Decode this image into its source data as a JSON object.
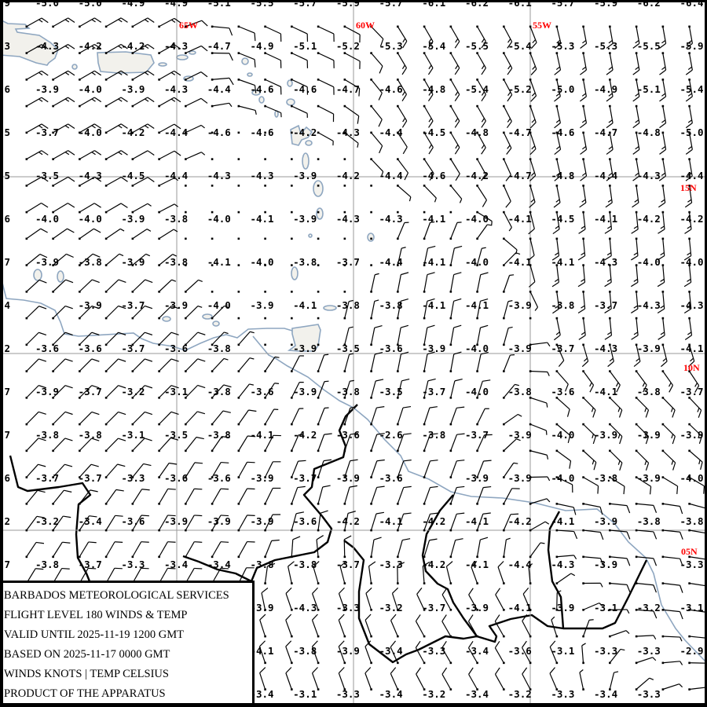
{
  "legend": {
    "agency": "BARBADOS METEOROLOGICAL SERVICES",
    "product": "FLIGHT LEVEL 180 WINDS & TEMP",
    "valid": "VALID UNTIL 2025-11-19 1200 GMT",
    "based": "BASED ON 2025-11-17 0000 GMT",
    "units": "WINDS KNOTS | TEMP CELSIUS",
    "credit": "PRODUCT OF THE APPARATUS"
  },
  "geo_labels": {
    "lon_65": "65W",
    "lon_60": "60W",
    "lon_55": "55W",
    "lat_15": "15N",
    "lat_10": "10N",
    "lat_05": "05N"
  },
  "extent": {
    "lon": [
      -70,
      -50
    ],
    "lat": [
      0,
      20
    ],
    "graticule_step_deg": 5
  },
  "colors": {
    "coastline": "#8ea6c0",
    "land_fill": "#f2f1ec",
    "borders": "#000000",
    "graticule": "#9a9a9a",
    "geo_labels": "#ff0000",
    "barbs": "#000000"
  },
  "temperatures": {
    "edge_fragments": [
      "9",
      "3",
      "6",
      "5",
      "5",
      "6",
      "7",
      "4",
      "2",
      "7",
      "7",
      "6",
      "2",
      "7",
      null,
      null,
      null
    ],
    "rows": [
      [
        -5.0,
        -5.0,
        -4.9,
        -4.9,
        -5.1,
        -5.5,
        -5.7,
        -5.9,
        -5.7,
        -6.1,
        -6.2,
        -6.1,
        -5.7,
        -5.9,
        -6.2,
        -6.4
      ],
      [
        -4.3,
        -4.2,
        -4.2,
        -4.3,
        -4.7,
        -4.9,
        -5.1,
        -5.2,
        -5.3,
        -5.4,
        -5.5,
        -5.4,
        -5.3,
        -5.3,
        -5.5,
        -5.9
      ],
      [
        -3.9,
        -4.0,
        -3.9,
        -4.3,
        -4.4,
        -4.6,
        -4.6,
        -4.7,
        -4.6,
        -4.8,
        -5.4,
        -5.2,
        -5.0,
        -4.9,
        -5.1,
        -5.4
      ],
      [
        -3.7,
        -4.0,
        -4.2,
        -4.4,
        -4.6,
        -4.6,
        -4.2,
        -4.3,
        -4.4,
        -4.5,
        -4.8,
        -4.7,
        -4.6,
        -4.7,
        -4.8,
        -5.0
      ],
      [
        -3.5,
        -4.3,
        -4.5,
        -4.4,
        -4.3,
        -4.3,
        -3.9,
        -4.2,
        -4.4,
        -4.6,
        -4.2,
        -4.7,
        -4.8,
        -4.4,
        -4.3,
        -4.4
      ],
      [
        -4.0,
        -4.0,
        -3.9,
        -3.8,
        -4.0,
        -4.1,
        -3.9,
        -4.3,
        -4.3,
        -4.1,
        -4.0,
        -4.1,
        -4.5,
        -4.1,
        -4.2,
        -4.2
      ],
      [
        -3.9,
        -3.8,
        -3.9,
        -3.8,
        -4.1,
        -4.0,
        -3.8,
        -3.7,
        -4.4,
        -4.1,
        -4.0,
        -4.1,
        -4.1,
        -4.3,
        -4.0,
        -4.0
      ],
      [
        null,
        -3.9,
        -3.7,
        -3.9,
        -4.0,
        -3.9,
        -4.1,
        -3.8,
        -3.8,
        -4.1,
        -4.1,
        -3.9,
        -3.8,
        -3.7,
        -4.3,
        -4.3
      ],
      [
        -3.6,
        -3.6,
        -3.7,
        -3.6,
        -3.8,
        null,
        -3.9,
        -3.5,
        -3.6,
        -3.9,
        -4.0,
        -3.9,
        -3.7,
        -4.3,
        -3.9,
        -4.1
      ],
      [
        -3.9,
        -3.7,
        -3.2,
        -3.1,
        -3.8,
        -3.6,
        -3.9,
        -3.8,
        -3.5,
        -3.7,
        -4.0,
        -3.8,
        -3.6,
        -4.1,
        -3.8,
        -3.7
      ],
      [
        -3.8,
        -3.8,
        -3.1,
        -3.5,
        -3.8,
        -4.1,
        -4.2,
        -3.6,
        -2.6,
        -3.8,
        -3.7,
        -3.9,
        -4.0,
        -3.9,
        -3.9,
        -3.9
      ],
      [
        -3.7,
        -3.7,
        -3.3,
        -3.6,
        -3.6,
        -3.9,
        -3.7,
        -3.9,
        -3.6,
        null,
        -3.9,
        -3.9,
        -4.0,
        -3.8,
        -3.9,
        -4.0
      ],
      [
        -3.2,
        -3.4,
        -3.6,
        -3.9,
        -3.9,
        -3.9,
        -3.6,
        -4.2,
        -4.1,
        -4.2,
        -4.1,
        -4.2,
        -4.1,
        -3.9,
        -3.8,
        -3.8
      ],
      [
        -3.8,
        -3.7,
        -3.3,
        -3.4,
        -3.4,
        -3.8,
        -3.8,
        -3.7,
        -3.3,
        -4.2,
        -4.1,
        -4.4,
        -4.3,
        -3.9,
        null,
        -3.3
      ],
      [
        null,
        null,
        null,
        null,
        null,
        -3.9,
        -4.3,
        -3.3,
        -3.2,
        -3.7,
        -3.9,
        -4.1,
        -3.9,
        -3.1,
        -3.2,
        -3.1
      ],
      [
        null,
        null,
        null,
        null,
        null,
        -4.1,
        -3.8,
        -3.9,
        -3.4,
        -3.3,
        -3.4,
        -3.6,
        -3.1,
        -3.3,
        -3.3,
        -2.9
      ],
      [
        null,
        null,
        null,
        null,
        null,
        -3.4,
        -3.1,
        -3.3,
        -3.4,
        -3.2,
        -3.4,
        -3.2,
        -3.3,
        -3.4,
        -3.3,
        null
      ]
    ]
  },
  "wind": {
    "units": "knots",
    "station_spacing_deg": 0.75,
    "field_estimate": [
      {
        "lon": -66.7,
        "lat": 17.8,
        "dir": 60,
        "speed": 15
      },
      {
        "lon": -66.7,
        "lat": 8.9,
        "dir": 45,
        "speed": 10
      },
      {
        "lon": -62.5,
        "lat": 14.8,
        "dir": 0,
        "speed": 0
      },
      {
        "lon": -61.6,
        "lat": 12.8,
        "dir": 0,
        "speed": 0
      },
      {
        "lon": -61.6,
        "lat": 18.7,
        "dir": 115,
        "speed": 10
      },
      {
        "lon": -57.6,
        "lat": 18.2,
        "dir": 150,
        "speed": 15
      },
      {
        "lon": -52.2,
        "lat": 17.8,
        "dir": 170,
        "speed": 20
      },
      {
        "lon": -52.2,
        "lat": 12.2,
        "dir": 175,
        "speed": 20
      },
      {
        "lon": -52.2,
        "lat": 7.6,
        "dir": 135,
        "speed": 15
      },
      {
        "lon": -52.2,
        "lat": 5.3,
        "dir": 95,
        "speed": 10
      },
      {
        "lon": -57.6,
        "lat": 10.7,
        "dir": 10,
        "speed": 10
      },
      {
        "lon": -57.8,
        "lat": 5.6,
        "dir": 20,
        "speed": 10
      },
      {
        "lon": -56.7,
        "lat": 1.8,
        "dir": 330,
        "speed": 10
      },
      {
        "lon": -61.1,
        "lat": 1.8,
        "dir": 340,
        "speed": 10
      },
      {
        "lon": -64.4,
        "lat": 4.4,
        "dir": 30,
        "speed": 10
      }
    ]
  }
}
